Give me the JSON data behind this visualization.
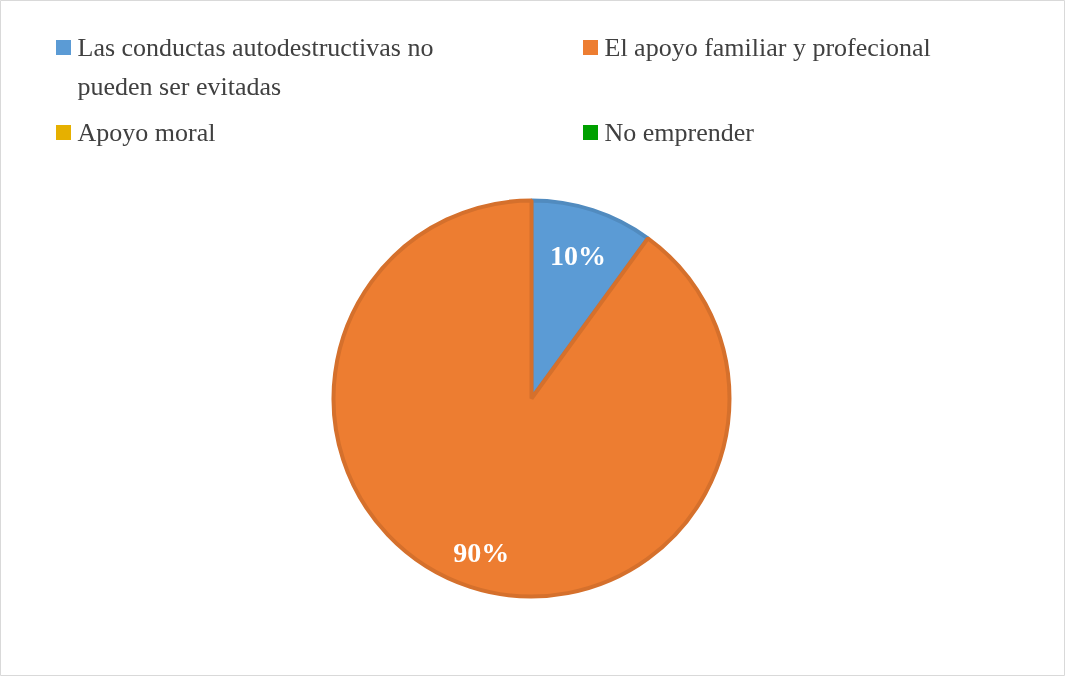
{
  "chart_data": {
    "type": "pie",
    "categories": [
      "Las conductas autodestructivas no pueden ser evitadas",
      "El apoyo familiar y profecional",
      "Apoyo moral",
      "No emprender"
    ],
    "values": [
      10,
      90,
      0,
      0
    ],
    "colors": [
      "#5b9bd5",
      "#ed7d31",
      "#e6b000",
      "#00a000"
    ],
    "value_labels": [
      "10%",
      "90%",
      null,
      null
    ],
    "legend": "top"
  }
}
